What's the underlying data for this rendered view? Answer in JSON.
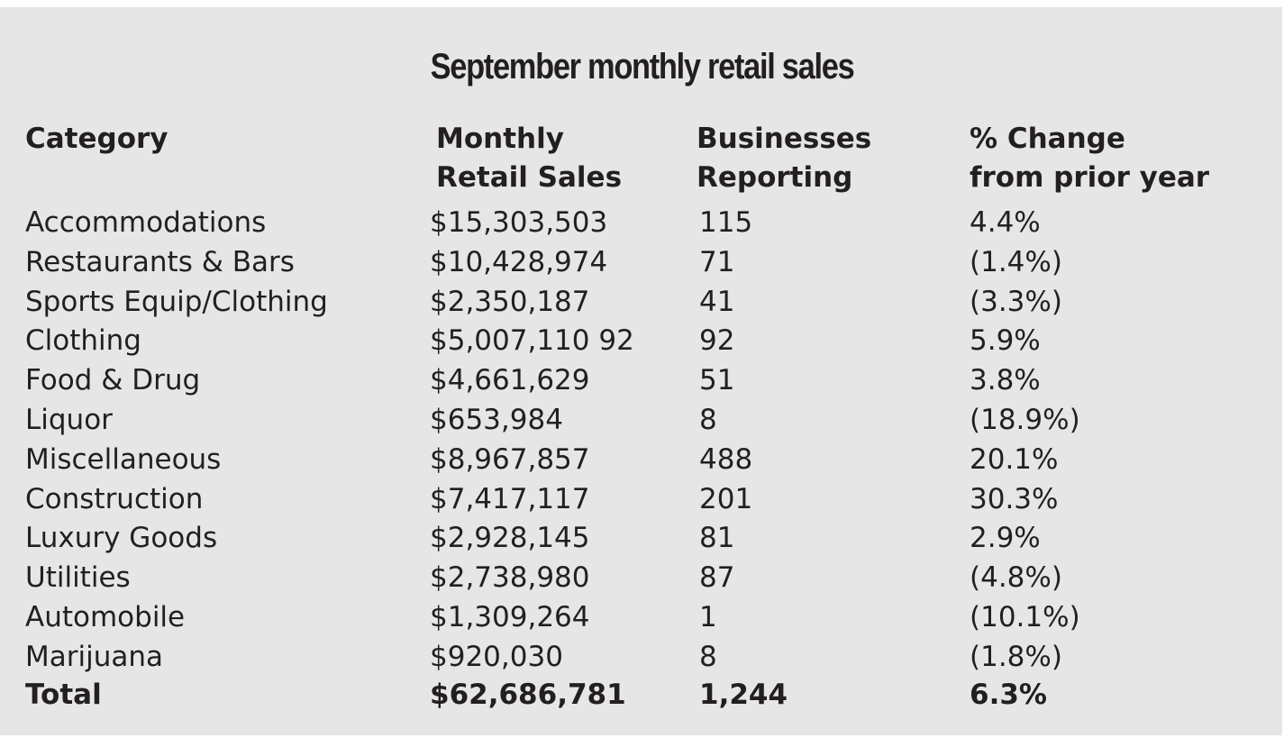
{
  "chart_data": {
    "type": "table",
    "title": "September monthly retail sales",
    "columns": [
      "Category",
      "Monthly Retail Sales",
      "Businesses Reporting",
      "% Change from prior year"
    ],
    "headers": {
      "category": "Category",
      "sales_line1": "Monthly",
      "sales_line2": "Retail Sales",
      "businesses_line1": "Businesses",
      "businesses_line2": "Reporting",
      "change_line1": "% Change",
      "change_line2": "from prior year"
    },
    "rows": [
      {
        "category": "Accommodations",
        "sales": "$15,303,503",
        "businesses": "115",
        "change": "4.4%"
      },
      {
        "category": "Restaurants & Bars",
        "sales": "$10,428,974",
        "businesses": "71",
        "change": "(1.4%)"
      },
      {
        "category": "Sports Equip/Clothing",
        "sales": "$2,350,187",
        "businesses": "41",
        "change": "(3.3%)"
      },
      {
        "category": "Clothing",
        "sales": "$5,007,110 92",
        "businesses": "92",
        "change": "5.9%"
      },
      {
        "category": "Food & Drug",
        "sales": "$4,661,629",
        "businesses": "51",
        "change": "3.8%"
      },
      {
        "category": "Liquor",
        "sales": "$653,984",
        "businesses": "8",
        "change": "(18.9%)"
      },
      {
        "category": "Miscellaneous",
        "sales": "$8,967,857",
        "businesses": "488",
        "change": "20.1%"
      },
      {
        "category": "Construction",
        "sales": "$7,417,117",
        "businesses": "201",
        "change": "30.3%"
      },
      {
        "category": "Luxury Goods",
        "sales": "$2,928,145",
        "businesses": "81",
        "change": "2.9%"
      },
      {
        "category": "Utilities",
        "sales": "$2,738,980",
        "businesses": "87",
        "change": "(4.8%)"
      },
      {
        "category": "Automobile",
        "sales": "$1,309,264",
        "businesses": "1",
        "change": "(10.1%)"
      },
      {
        "category": "Marijuana",
        "sales": "$920,030",
        "businesses": "8",
        "change": "(1.8%)"
      }
    ],
    "total": {
      "category": "Total",
      "sales": "$62,686,781",
      "businesses": "1,244",
      "change": "6.3%"
    }
  }
}
